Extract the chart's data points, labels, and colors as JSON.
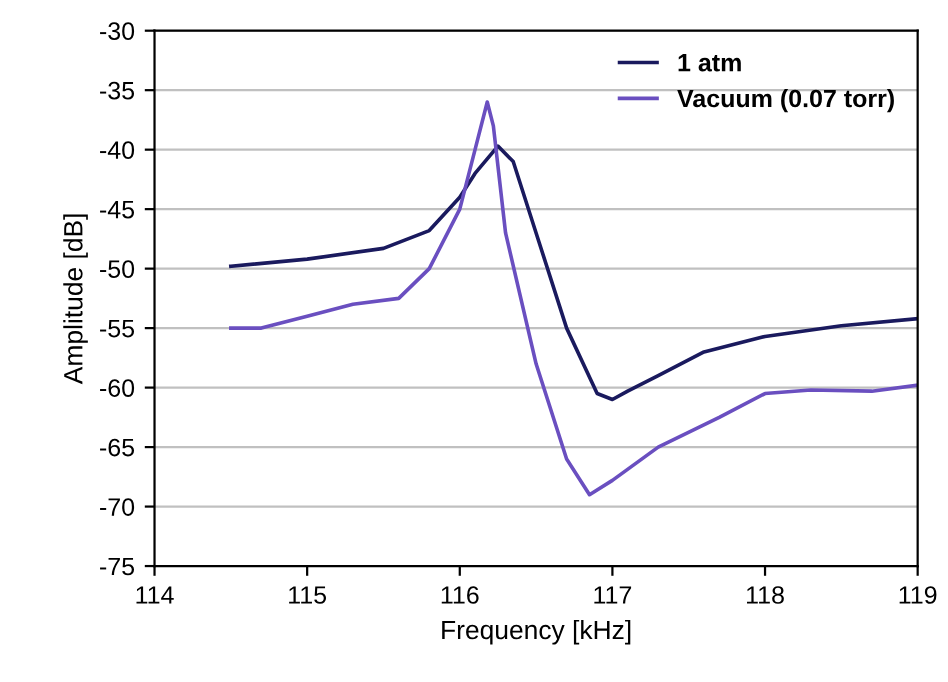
{
  "chart_data": {
    "type": "line",
    "xlabel": "Frequency [kHz]",
    "ylabel": "Amplitude [dB]",
    "xlim": [
      114,
      119
    ],
    "xticks": [
      114,
      115,
      116,
      117,
      118,
      119
    ],
    "ylim": [
      -75,
      -30
    ],
    "yticks": [
      -75,
      -70,
      -65,
      -60,
      -55,
      -50,
      -45,
      -40,
      -35,
      -30
    ],
    "grid": "y",
    "legend": "top right",
    "marker": "none",
    "line_style": "solid",
    "series": [
      {
        "name": "1 atm",
        "color": "#1a1a5e",
        "x": [
          114.5,
          115,
          115.5,
          115.8,
          116,
          116.1,
          116.25,
          116.35,
          116.5,
          116.7,
          116.9,
          117,
          117.1,
          117.3,
          117.6,
          118,
          118.5,
          119
        ],
        "values": [
          -49.8,
          -49.2,
          -48.3,
          -46.8,
          -44,
          -42,
          -39.7,
          -41,
          -47,
          -55,
          -60.5,
          -61,
          -60.3,
          -59,
          -57,
          -55.7,
          -54.8,
          -54.2
        ]
      },
      {
        "name": "Vacuum (0.07 torr)",
        "color": "#6a4fc0",
        "x": [
          114.5,
          114.7,
          115,
          115.3,
          115.6,
          115.8,
          116,
          116.1,
          116.18,
          116.22,
          116.3,
          116.5,
          116.7,
          116.85,
          117,
          117.3,
          117.7,
          118,
          118.3,
          118.7,
          119
        ],
        "values": [
          -55,
          -55,
          -54,
          -53,
          -52.5,
          -50,
          -45,
          -40,
          -36,
          -38,
          -47,
          -58,
          -66,
          -69,
          -67.8,
          -65,
          -62.5,
          -60.5,
          -60.2,
          -60.3,
          -59.8
        ]
      }
    ]
  }
}
